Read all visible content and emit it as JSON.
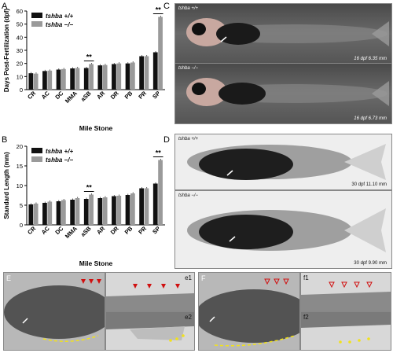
{
  "chart_data": [
    {
      "type": "bar",
      "panel": "A",
      "ylabel": "Days Post-Fertilization (dpf)",
      "xlabel": "Mile Stone",
      "categories": [
        "CR",
        "AC",
        "DC",
        "MMA",
        "aSB",
        "AR",
        "DR",
        "PB",
        "PR",
        "SP"
      ],
      "ylim": [
        0,
        60
      ],
      "yticks": [
        "0",
        "10",
        "20",
        "30",
        "40",
        "50",
        "60"
      ],
      "series": [
        {
          "name": "tshba +/+",
          "color": "#111111",
          "values": [
            12.5,
            14.2,
            15.3,
            16.2,
            16.5,
            18.5,
            19.5,
            20.0,
            25.5,
            28.5
          ]
        },
        {
          "name": "tshba −/−",
          "color": "#9a9a9a",
          "values": [
            12.2,
            14.5,
            15.7,
            16.5,
            19.5,
            18.8,
            20.0,
            20.7,
            25.5,
            55.5
          ]
        }
      ],
      "significance": [
        {
          "category": "aSB",
          "label": "**"
        },
        {
          "category": "SP",
          "label": "**"
        }
      ],
      "legend": "top-left"
    },
    {
      "type": "bar",
      "panel": "B",
      "ylabel": "Standard Length (mm)",
      "xlabel": "Mile Stone",
      "categories": [
        "CR",
        "AC",
        "DC",
        "MMA",
        "aSB",
        "AR",
        "DR",
        "PB",
        "PR",
        "SP"
      ],
      "ylim": [
        0,
        20
      ],
      "yticks": [
        "0",
        "5",
        "10",
        "15",
        "20"
      ],
      "series": [
        {
          "name": "tshba +/+",
          "color": "#111111",
          "values": [
            5.2,
            5.6,
            6.0,
            6.4,
            6.6,
            6.8,
            7.3,
            7.6,
            9.3,
            10.5
          ]
        },
        {
          "name": "tshba −/−",
          "color": "#9a9a9a",
          "values": [
            5.4,
            5.9,
            6.3,
            6.8,
            7.7,
            7.0,
            7.4,
            8.0,
            9.3,
            16.5
          ]
        }
      ],
      "significance": [
        {
          "category": "aSB",
          "label": "**"
        },
        {
          "category": "SP",
          "label": "**"
        }
      ],
      "legend": "top-left"
    }
  ],
  "panels": {
    "A": "A",
    "B": "B",
    "C": "C",
    "D": "D",
    "E": "E",
    "e1": "e1",
    "e2": "e2",
    "F": "F",
    "f1": "f1",
    "f2": "f2"
  },
  "photos": {
    "c_top_geno": "tshba +/+",
    "c_top_info": "16 dpf   6.35 mm",
    "c_bot_geno": "tshba −/−",
    "c_bot_info": "16 dpf   6.73 mm",
    "d_top_geno": "tshba +/+",
    "d_top_info": "30 dpf   11.10 mm",
    "d_bot_geno": "tshba −/−",
    "d_bot_info": "30 dpf   9.90 mm"
  },
  "colors": {
    "wt": "#111111",
    "mut": "#9a9a9a",
    "arrow_red": "#d01010",
    "dash_yellow": "#f2e21a"
  }
}
